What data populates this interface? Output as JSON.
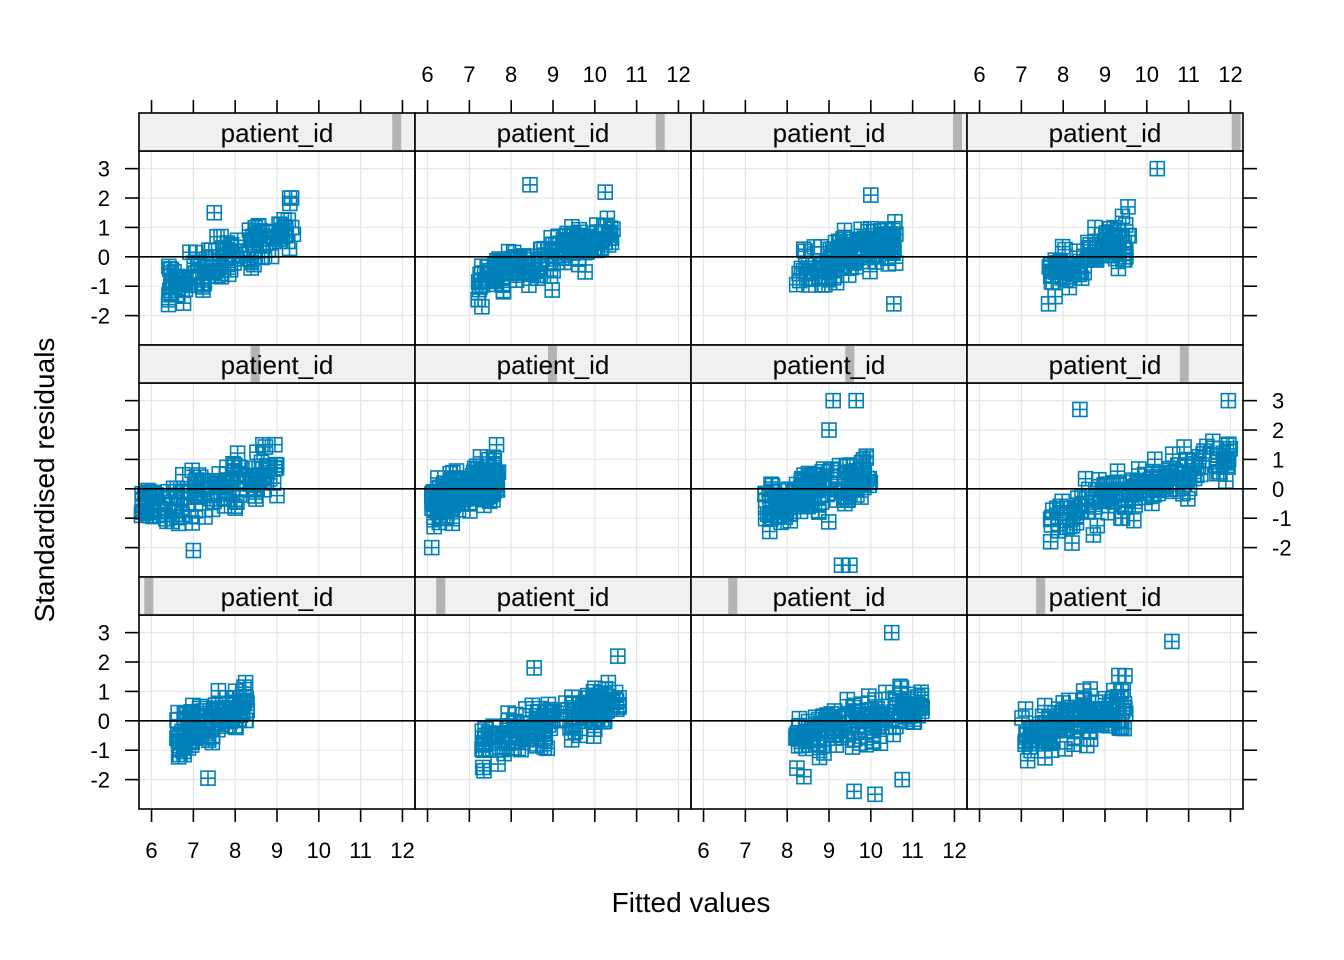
{
  "chart_data": {
    "type": "scatter",
    "title": "",
    "xlabel": "Fitted values",
    "ylabel": "Standardised residuals",
    "strip_label": "patient_id",
    "xlim": [
      5.7,
      12.3
    ],
    "ylim": [
      -3.0,
      3.6
    ],
    "x_ticks": [
      6,
      7,
      8,
      9,
      10,
      11,
      12
    ],
    "y_ticks": [
      -2,
      -1,
      0,
      1,
      2,
      3
    ],
    "reference_line_y": 0,
    "grid": true,
    "marker": "square-with-plus",
    "colors": {
      "points": "#0080b8",
      "strip_bg": "#f0f0f0",
      "strip_indicator": "#b3b3b3",
      "grid": "#e6e6e6",
      "frame": "#000000"
    },
    "panels": [
      {
        "row": 1,
        "col": 1,
        "strip_level": 0.952,
        "x_range": [
          6.4,
          9.4
        ],
        "y_range": [
          -1.8,
          2.0
        ],
        "slope": 0.85,
        "n": 130,
        "outliers": [
          [
            9.3,
            2.0
          ],
          [
            9.35,
            2.0
          ],
          [
            7.5,
            1.5
          ]
        ]
      },
      {
        "row": 1,
        "col": 2,
        "strip_level": 0.905,
        "x_range": [
          7.2,
          10.5
        ],
        "y_range": [
          -1.9,
          2.2
        ],
        "slope": 0.6,
        "n": 150,
        "outliers": [
          [
            8.45,
            2.45
          ],
          [
            10.25,
            2.2
          ],
          [
            7.3,
            -1.7
          ]
        ]
      },
      {
        "row": 1,
        "col": 3,
        "strip_level": 0.985,
        "x_range": [
          8.2,
          10.6
        ],
        "y_range": [
          -2.2,
          2.2
        ],
        "slope": 0.5,
        "n": 150,
        "outliers": [
          [
            10.55,
            -1.6
          ],
          [
            10.0,
            2.1
          ]
        ]
      },
      {
        "row": 1,
        "col": 4,
        "strip_level": 0.995,
        "x_range": [
          7.6,
          9.6
        ],
        "y_range": [
          -1.6,
          1.7
        ],
        "slope": 0.8,
        "n": 100,
        "outliers": [
          [
            10.25,
            3.0
          ],
          [
            9.55,
            1.7
          ],
          [
            7.65,
            -1.6
          ]
        ]
      },
      {
        "row": 2,
        "col": 1,
        "strip_level": 0.42,
        "x_range": [
          5.75,
          9.0
        ],
        "y_range": [
          -2.1,
          1.5
        ],
        "slope": 0.5,
        "n": 150,
        "outliers": [
          [
            7.0,
            -2.1
          ],
          [
            8.95,
            1.5
          ]
        ]
      },
      {
        "row": 2,
        "col": 2,
        "strip_level": 0.5,
        "x_range": [
          6.1,
          7.7
        ],
        "y_range": [
          -2.0,
          1.9
        ],
        "slope": 0.7,
        "n": 190,
        "outliers": [
          [
            6.1,
            -2.0
          ],
          [
            7.65,
            1.5
          ]
        ]
      },
      {
        "row": 2,
        "col": 3,
        "strip_level": 0.58,
        "x_range": [
          7.4,
          10.0
        ],
        "y_range": [
          -2.6,
          3.0
        ],
        "slope": 0.5,
        "n": 150,
        "outliers": [
          [
            9.1,
            3.0
          ],
          [
            9.65,
            3.0
          ],
          [
            9.3,
            -2.6
          ],
          [
            9.5,
            -2.6
          ],
          [
            9.0,
            2.0
          ]
        ]
      },
      {
        "row": 2,
        "col": 4,
        "strip_level": 0.8,
        "x_range": [
          7.7,
          12.0
        ],
        "y_range": [
          -2.5,
          3.0
        ],
        "slope": 0.6,
        "n": 170,
        "outliers": [
          [
            11.95,
            3.0
          ],
          [
            8.4,
            2.7
          ],
          [
            7.7,
            -1.8
          ],
          [
            9.3,
            0.6
          ]
        ]
      },
      {
        "row": 3,
        "col": 1,
        "strip_level": 0.02,
        "x_range": [
          6.6,
          8.3
        ],
        "y_range": [
          -2.0,
          1.4
        ],
        "slope": 0.9,
        "n": 120,
        "outliers": [
          [
            7.35,
            -1.95
          ],
          [
            8.25,
            1.3
          ]
        ]
      },
      {
        "row": 3,
        "col": 2,
        "strip_level": 0.08,
        "x_range": [
          7.3,
          10.6
        ],
        "y_range": [
          -2.0,
          2.2
        ],
        "slope": 0.6,
        "n": 160,
        "outliers": [
          [
            10.55,
            2.2
          ],
          [
            7.35,
            -1.7
          ],
          [
            8.55,
            1.8
          ]
        ]
      },
      {
        "row": 3,
        "col": 3,
        "strip_level": 0.14,
        "x_range": [
          8.2,
          11.3
        ],
        "y_range": [
          -2.5,
          3.0
        ],
        "slope": 0.5,
        "n": 160,
        "outliers": [
          [
            10.5,
            3.0
          ],
          [
            10.1,
            -2.5
          ],
          [
            9.6,
            -2.4
          ],
          [
            8.4,
            -1.9
          ],
          [
            10.75,
            -2.0
          ]
        ]
      },
      {
        "row": 3,
        "col": 4,
        "strip_level": 0.26,
        "x_range": [
          7.0,
          9.5
        ],
        "y_range": [
          -2.0,
          2.2
        ],
        "slope": 0.6,
        "n": 150,
        "outliers": [
          [
            10.6,
            2.7
          ],
          [
            7.1,
            0.4
          ]
        ]
      }
    ]
  }
}
